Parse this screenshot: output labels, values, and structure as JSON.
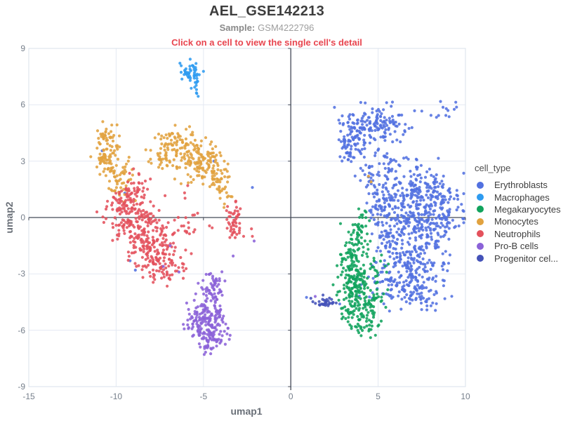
{
  "header": {
    "title": "AEL_GSE142213",
    "sample_label": "Sample:",
    "sample_value": "GSM4222796",
    "hint": "Click on a cell to view the single cell's detail"
  },
  "chart_data": {
    "type": "scatter",
    "title": "AEL_GSE142213",
    "xlabel": "umap1",
    "ylabel": "umap2",
    "xlim": [
      -15,
      10
    ],
    "ylim": [
      -9,
      9
    ],
    "x_ticks": [
      -15,
      -10,
      -5,
      0,
      5,
      10
    ],
    "y_ticks": [
      -9,
      -6,
      -3,
      0,
      3,
      6,
      9
    ],
    "grid": true,
    "legend_title": "cell_type",
    "legend_position": "right",
    "point_radius": 2.1,
    "point_opacity": 0.88,
    "style": {
      "grid_color": "#e4e9f2",
      "border_color": "#d9e2eb",
      "axis_color": "#454b57",
      "tick_color": "#767f8b"
    },
    "note": "dense UMAP clusters approximated as gaussian blobs [center_x, center_y, sigma_x, sigma_y, n_points]; strays are individual visible outlier points",
    "series": [
      {
        "name": "Erythroblasts",
        "color": "#5271e0",
        "blobs": [
          [
            5.0,
            5.0,
            1.0,
            0.5,
            110
          ],
          [
            4.4,
            4.6,
            0.7,
            0.6,
            50
          ],
          [
            3.6,
            4.2,
            0.5,
            0.55,
            55
          ],
          [
            3.2,
            3.3,
            0.25,
            0.3,
            15
          ],
          [
            4.4,
            2.4,
            0.3,
            0.55,
            20
          ],
          [
            5.9,
            2.9,
            0.6,
            0.35,
            25
          ],
          [
            7.3,
            1.4,
            1.1,
            0.7,
            140
          ],
          [
            8.4,
            0.0,
            0.8,
            1.0,
            150
          ],
          [
            6.6,
            -0.3,
            0.8,
            1.0,
            130
          ],
          [
            5.5,
            -0.9,
            0.45,
            1.0,
            60
          ],
          [
            7.0,
            -2.3,
            1.0,
            0.8,
            140
          ],
          [
            5.9,
            -3.6,
            0.9,
            0.6,
            80
          ],
          [
            7.6,
            -3.9,
            0.7,
            0.45,
            55
          ],
          [
            5.3,
            1.2,
            0.5,
            0.7,
            50
          ],
          [
            8.9,
            5.8,
            0.45,
            0.25,
            12
          ]
        ],
        "strays": [
          [
            -10.8,
            3.55
          ],
          [
            -9.5,
            1.3
          ],
          [
            -4.4,
            3.0
          ],
          [
            -2.2,
            1.6
          ],
          [
            -9.2,
            -2.3
          ],
          [
            -8.9,
            -2.8
          ],
          [
            2.8,
            -4.6
          ],
          [
            0.9,
            -4.25
          ]
        ]
      },
      {
        "name": "Macrophages",
        "color": "#2e9bf0",
        "blobs": [
          [
            -5.8,
            7.75,
            0.32,
            0.27,
            42
          ],
          [
            -5.45,
            6.95,
            0.1,
            0.3,
            10
          ]
        ],
        "strays": [
          [
            -5.3,
            6.45
          ],
          [
            -5.38,
            6.6
          ]
        ]
      },
      {
        "name": "Megakaryocytes",
        "color": "#11a35d",
        "blobs": [
          [
            3.95,
            -0.7,
            0.22,
            0.6,
            35
          ],
          [
            3.45,
            -2.2,
            0.32,
            0.75,
            75
          ],
          [
            3.55,
            -3.8,
            0.45,
            0.75,
            95
          ],
          [
            4.35,
            -2.9,
            0.5,
            0.75,
            55
          ],
          [
            4.05,
            -5.3,
            0.45,
            0.55,
            75
          ],
          [
            4.9,
            -4.3,
            0.4,
            0.4,
            22
          ]
        ],
        "strays": [
          [
            4.25,
            0.35
          ],
          [
            4.1,
            0.0
          ],
          [
            2.75,
            -4.4
          ]
        ]
      },
      {
        "name": "Monocytes",
        "color": "#e1a23f",
        "blobs": [
          [
            -10.45,
            3.35,
            0.4,
            0.75,
            75
          ],
          [
            -9.85,
            2.2,
            0.45,
            0.55,
            55
          ],
          [
            -10.7,
            4.35,
            0.28,
            0.3,
            18
          ],
          [
            -6.4,
            3.95,
            0.55,
            0.5,
            65
          ],
          [
            -5.55,
            3.1,
            0.6,
            0.55,
            75
          ],
          [
            -4.7,
            2.55,
            0.55,
            0.7,
            75
          ],
          [
            -3.95,
            1.6,
            0.3,
            0.5,
            30
          ],
          [
            -7.3,
            3.3,
            0.4,
            0.5,
            30
          ]
        ],
        "strays": [
          [
            -3.8,
            0.72
          ],
          [
            -8.9,
            0.9
          ],
          [
            4.45,
            2.2
          ],
          [
            4.6,
            1.9
          ]
        ]
      },
      {
        "name": "Neutrophils",
        "color": "#e4515c",
        "blobs": [
          [
            -9.5,
            0.55,
            0.55,
            0.75,
            85
          ],
          [
            -8.7,
            -0.6,
            0.6,
            0.8,
            105
          ],
          [
            -7.9,
            -1.7,
            0.6,
            0.7,
            105
          ],
          [
            -7.2,
            -2.6,
            0.5,
            0.45,
            50
          ],
          [
            -8.75,
            1.6,
            0.4,
            0.55,
            38
          ],
          [
            -6.4,
            -0.8,
            0.7,
            0.9,
            42
          ],
          [
            -3.25,
            -0.1,
            0.22,
            0.6,
            48
          ]
        ],
        "strays": [
          [
            -4.5,
            -0.55
          ],
          [
            -2.25,
            -0.6
          ],
          [
            -11.1,
            0.3
          ],
          [
            -5.9,
            1.7
          ],
          [
            -2.2,
            -1.0
          ],
          [
            -6.5,
            -2.85
          ]
        ]
      },
      {
        "name": "Pro-B cells",
        "color": "#8b62d8",
        "blobs": [
          [
            -4.3,
            -3.4,
            0.22,
            0.4,
            22
          ],
          [
            -4.6,
            -4.4,
            0.35,
            0.55,
            65
          ],
          [
            -4.85,
            -5.4,
            0.5,
            0.5,
            85
          ],
          [
            -4.5,
            -6.3,
            0.45,
            0.4,
            65
          ],
          [
            -5.5,
            -5.5,
            0.28,
            0.3,
            22
          ],
          [
            -4.9,
            -7.0,
            0.22,
            0.22,
            12
          ]
        ],
        "strays": [
          [
            -2.1,
            -1.25
          ],
          [
            -6.9,
            -1.5
          ],
          [
            -3.3,
            -2.05
          ],
          [
            1.4,
            -4.2
          ],
          [
            -7.3,
            -2.6
          ],
          [
            -6.4,
            -2.9
          ],
          [
            -5.3,
            -3.5
          ]
        ]
      },
      {
        "name": "Progenitor cel...",
        "color": "#4452b8",
        "blobs": [
          [
            1.95,
            -4.45,
            0.3,
            0.13,
            30
          ]
        ],
        "strays": [
          [
            1.15,
            -4.3
          ],
          [
            2.6,
            -4.55
          ]
        ]
      }
    ]
  }
}
